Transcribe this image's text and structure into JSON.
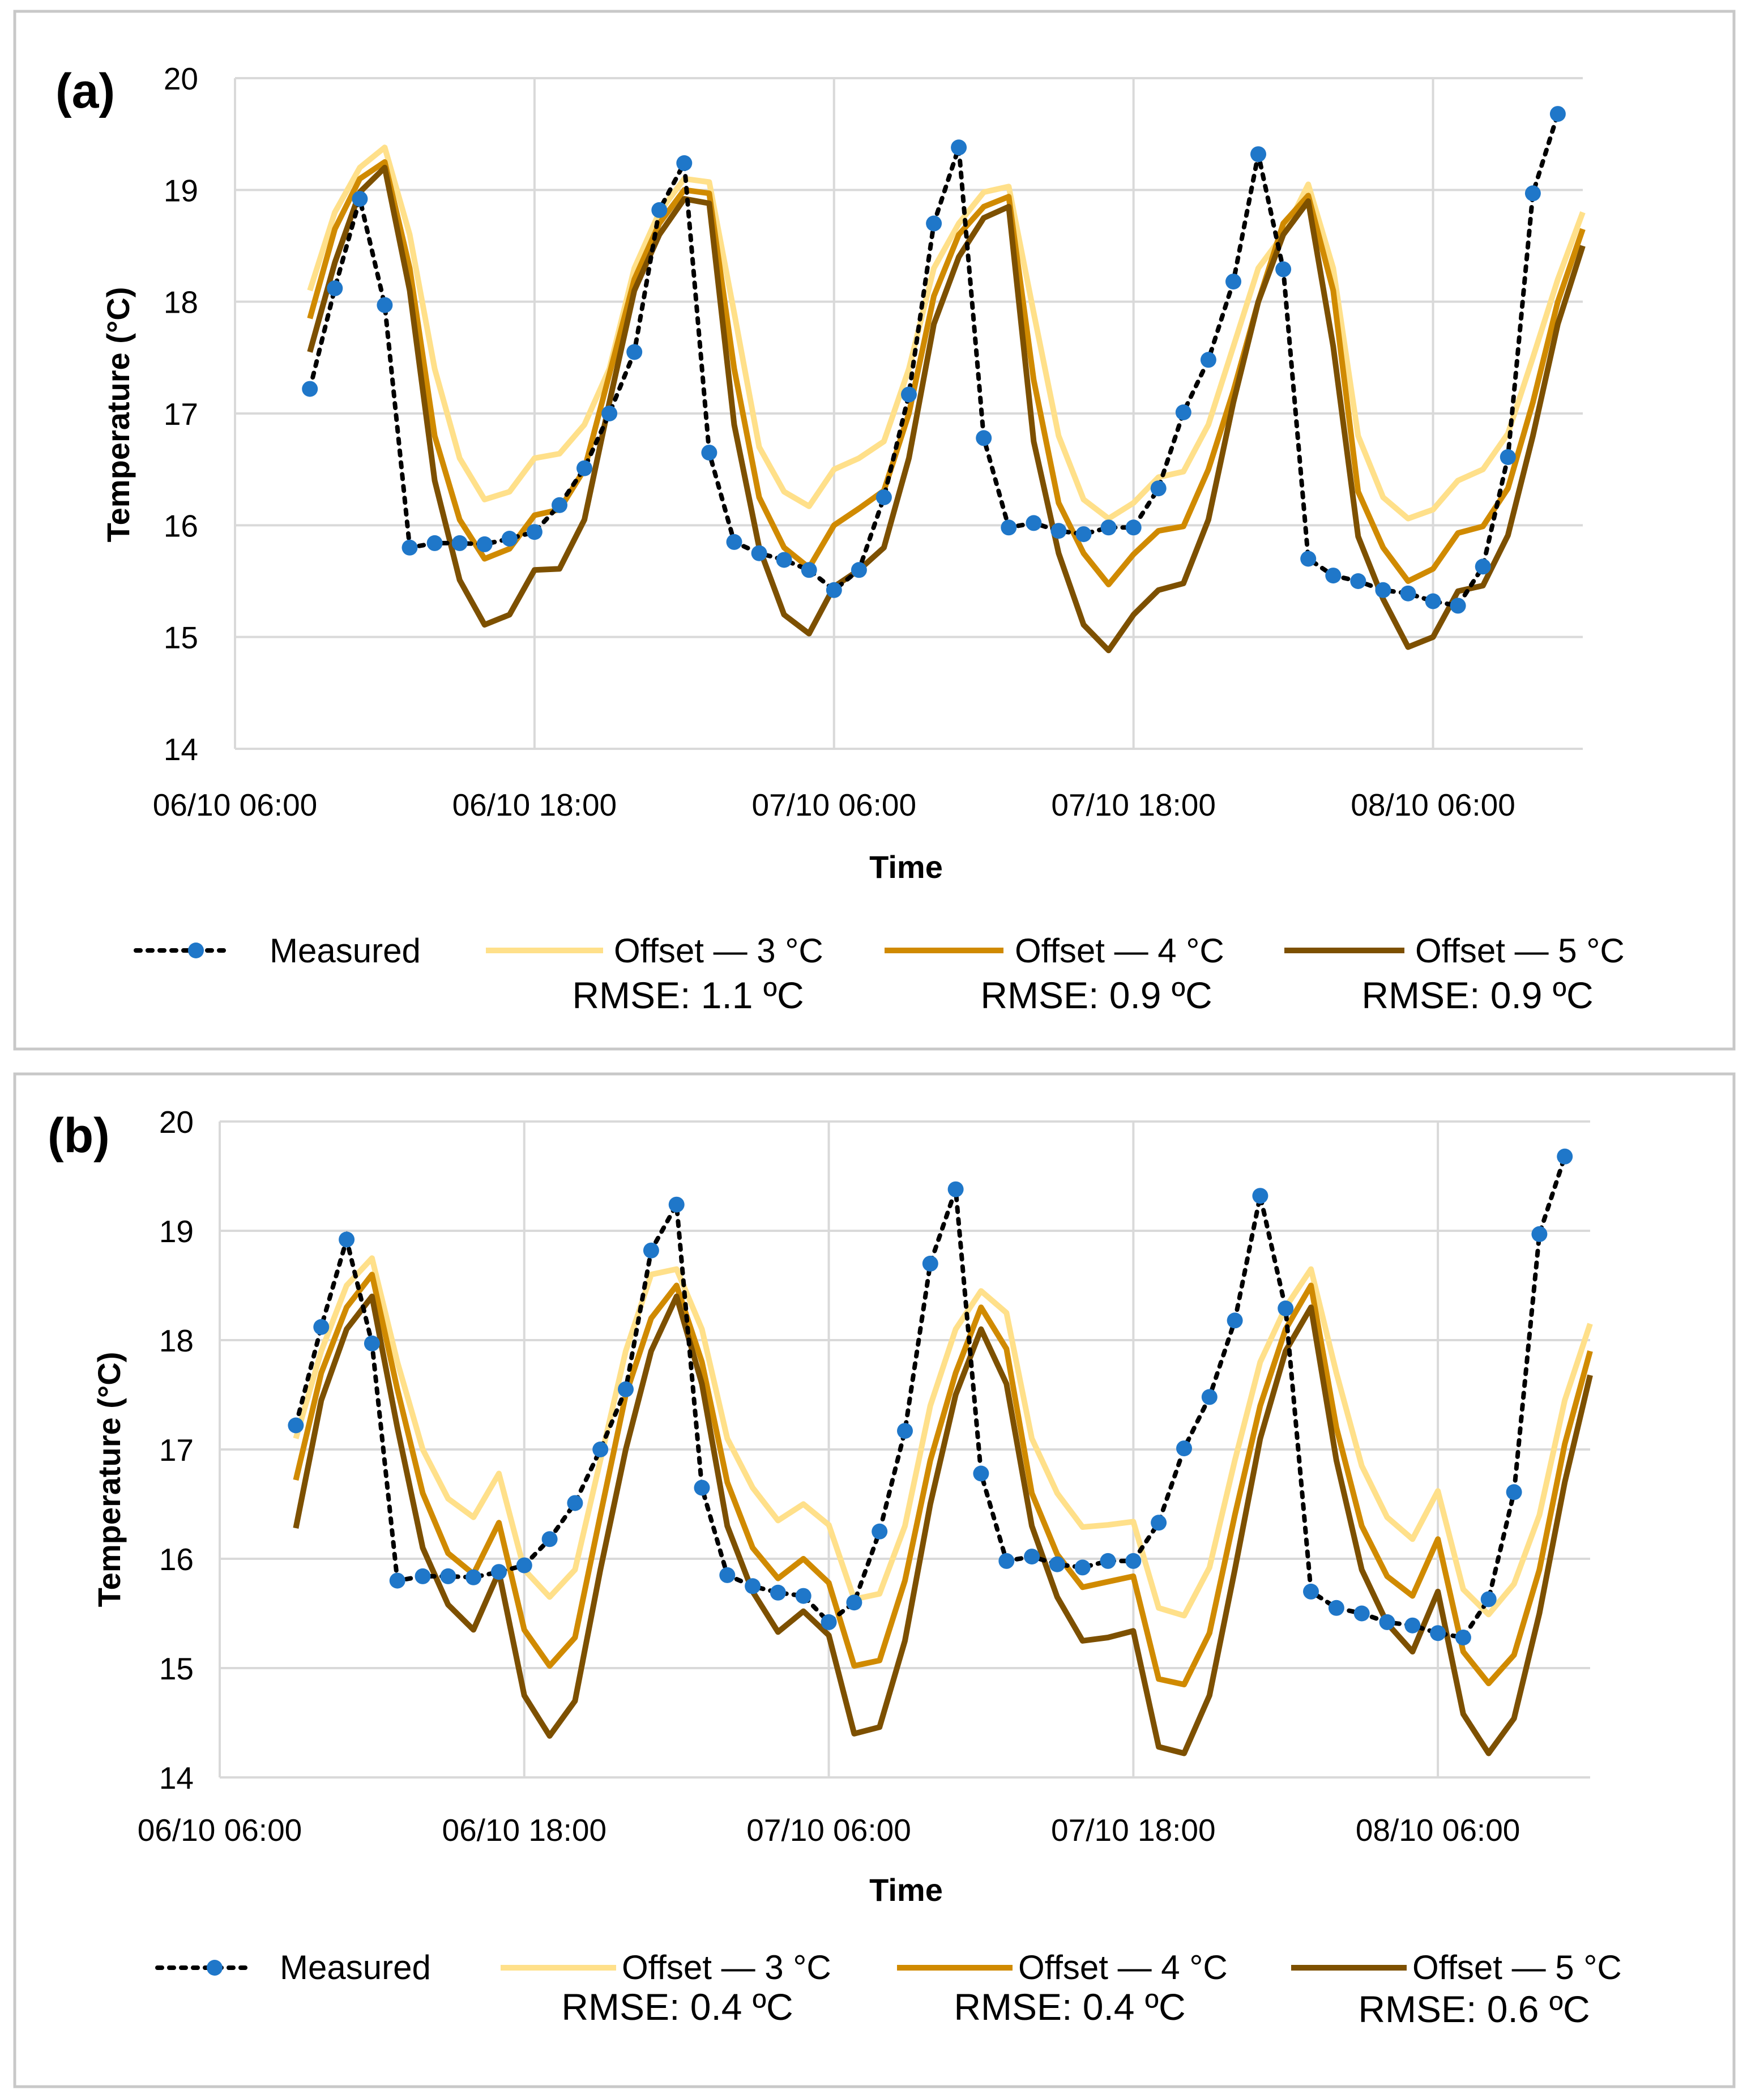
{
  "colors": {
    "measured_marker": "#1f77c9",
    "measured_line": "#000000",
    "offset3": "#ffe08a",
    "offset4": "#d08a00",
    "offset5": "#7d5000",
    "grid": "#d9d9d9",
    "frame": "#c8c8c8"
  },
  "chart_data": [
    {
      "panel": "(a)",
      "type": "line",
      "xlabel": "Time",
      "ylabel": "Temperature (°C)",
      "ylim": [
        14,
        20
      ],
      "yticks": [
        "14",
        "15",
        "16",
        "17",
        "18",
        "19",
        "20"
      ],
      "xtick_labels": [
        "06/10 06:00",
        "06/10 18:00",
        "07/10 06:00",
        "07/10 18:00",
        "08/10 06:00"
      ],
      "x_unit": "hours since 06/10 06:00",
      "x_range": [
        0,
        54
      ],
      "legend": [
        "Measured",
        "Offset — 3 °C",
        "Offset — 4 °C",
        "Offset — 5 °C"
      ],
      "rmse": [
        "RMSE: 1.1 ºC",
        "RMSE: 0.9 ºC",
        "RMSE: 0.9 ºC"
      ],
      "series": [
        {
          "name": "Measured",
          "style": "dotted-markers",
          "x_start": 3,
          "values": [
            17.22,
            18.12,
            18.92,
            17.97,
            15.8,
            15.84,
            15.84,
            15.83,
            15.88,
            15.94,
            16.18,
            16.51,
            17.0,
            17.55,
            18.82,
            19.24,
            16.65,
            15.85,
            15.75,
            15.69,
            15.6,
            15.42,
            15.6,
            16.25,
            17.17,
            18.7,
            19.38,
            16.78,
            15.98,
            16.02,
            15.95,
            15.92,
            15.98,
            15.98,
            16.33,
            17.01,
            17.48,
            18.18,
            19.32,
            18.29,
            15.7,
            15.55,
            15.5,
            15.42,
            15.39,
            15.32,
            15.28,
            15.63,
            16.61,
            18.97,
            19.68
          ]
        },
        {
          "name": "Offset — 3 °C",
          "style": "line",
          "x_start": 3,
          "values": [
            18.1,
            18.8,
            19.2,
            19.38,
            18.6,
            17.4,
            16.6,
            16.23,
            16.3,
            16.6,
            16.64,
            16.9,
            17.4,
            18.3,
            18.8,
            19.1,
            19.07,
            17.9,
            16.7,
            16.3,
            16.17,
            16.5,
            16.6,
            16.75,
            17.4,
            18.3,
            18.7,
            18.98,
            19.03,
            17.9,
            16.8,
            16.23,
            16.06,
            16.2,
            16.43,
            16.48,
            16.9,
            17.6,
            18.3,
            18.6,
            19.05,
            18.3,
            16.8,
            16.25,
            16.06,
            16.14,
            16.4,
            16.5,
            16.82,
            17.5,
            18.2,
            18.8
          ]
        },
        {
          "name": "Offset — 4 °C",
          "style": "line",
          "x_start": 3,
          "values": [
            17.85,
            18.65,
            19.1,
            19.25,
            18.3,
            16.8,
            16.05,
            15.7,
            15.79,
            16.09,
            16.14,
            16.5,
            17.35,
            18.2,
            18.7,
            19.0,
            18.97,
            17.4,
            16.25,
            15.8,
            15.62,
            16.0,
            16.15,
            16.31,
            17.0,
            18.05,
            18.6,
            18.85,
            18.94,
            17.3,
            16.2,
            15.75,
            15.47,
            15.74,
            15.95,
            15.99,
            16.5,
            17.2,
            18.0,
            18.7,
            18.95,
            18.1,
            16.3,
            15.8,
            15.5,
            15.61,
            15.93,
            15.99,
            16.33,
            17.1,
            18.0,
            18.65
          ]
        },
        {
          "name": "Offset — 5 °C",
          "style": "line",
          "x_start": 3,
          "values": [
            17.55,
            18.35,
            18.98,
            19.2,
            18.1,
            16.4,
            15.51,
            15.11,
            15.2,
            15.6,
            15.61,
            16.05,
            17.1,
            18.1,
            18.6,
            18.92,
            18.88,
            16.9,
            15.8,
            15.2,
            15.03,
            15.45,
            15.6,
            15.8,
            16.6,
            17.8,
            18.4,
            18.75,
            18.85,
            16.75,
            15.75,
            15.11,
            14.88,
            15.2,
            15.42,
            15.48,
            16.05,
            17.1,
            18.0,
            18.6,
            18.9,
            17.6,
            15.9,
            15.34,
            14.91,
            15.0,
            15.41,
            15.46,
            15.91,
            16.8,
            17.8,
            18.5
          ]
        }
      ]
    },
    {
      "panel": "(b)",
      "type": "line",
      "xlabel": "Time",
      "ylabel": "Temperature (°C)",
      "ylim": [
        14,
        20
      ],
      "yticks": [
        "14",
        "15",
        "16",
        "17",
        "18",
        "19",
        "20"
      ],
      "xtick_labels": [
        "06/10 06:00",
        "06/10 18:00",
        "07/10 06:00",
        "07/10 18:00",
        "08/10 06:00"
      ],
      "x_unit": "hours since 06/10 06:00",
      "x_range": [
        0,
        54
      ],
      "legend": [
        "Measured",
        "Offset — 3 °C",
        "Offset — 4 °C",
        "Offset — 5 °C"
      ],
      "rmse": [
        "RMSE: 0.4 ºC",
        "RMSE: 0.4 ºC",
        "RMSE: 0.6 ºC"
      ],
      "series": [
        {
          "name": "Measured",
          "style": "dotted-markers",
          "x_start": 3,
          "values": [
            17.22,
            18.12,
            18.92,
            17.97,
            15.8,
            15.84,
            15.84,
            15.83,
            15.88,
            15.94,
            16.18,
            16.51,
            17.0,
            17.55,
            18.82,
            19.24,
            16.65,
            15.85,
            15.75,
            15.69,
            15.66,
            15.42,
            15.6,
            16.25,
            17.17,
            18.7,
            19.38,
            16.78,
            15.98,
            16.02,
            15.95,
            15.92,
            15.98,
            15.98,
            16.33,
            17.01,
            17.48,
            18.18,
            19.32,
            18.29,
            15.7,
            15.55,
            15.5,
            15.42,
            15.39,
            15.32,
            15.28,
            15.63,
            16.61,
            18.97,
            19.68
          ]
        },
        {
          "name": "Offset — 3 °C",
          "style": "line",
          "x_start": 3,
          "values": [
            17.1,
            17.9,
            18.5,
            18.75,
            17.8,
            17.0,
            16.55,
            16.38,
            16.78,
            15.9,
            15.65,
            15.9,
            16.9,
            17.9,
            18.6,
            18.65,
            18.1,
            17.1,
            16.65,
            16.35,
            16.5,
            16.31,
            15.63,
            15.68,
            16.3,
            17.4,
            18.1,
            18.45,
            18.25,
            17.1,
            16.6,
            16.29,
            16.31,
            16.34,
            15.55,
            15.48,
            15.92,
            16.9,
            17.8,
            18.3,
            18.65,
            17.7,
            16.85,
            16.38,
            16.18,
            16.62,
            15.72,
            15.49,
            15.77,
            16.4,
            17.45,
            18.15
          ]
        },
        {
          "name": "Offset — 4 °C",
          "style": "line",
          "x_start": 3,
          "values": [
            16.72,
            17.7,
            18.3,
            18.6,
            17.55,
            16.6,
            16.05,
            15.86,
            16.33,
            15.35,
            15.02,
            15.28,
            16.4,
            17.5,
            18.2,
            18.5,
            17.8,
            16.7,
            16.1,
            15.82,
            16.0,
            15.78,
            15.02,
            15.07,
            15.8,
            16.9,
            17.7,
            18.3,
            17.92,
            16.6,
            16.04,
            15.74,
            15.79,
            15.84,
            14.9,
            14.85,
            15.32,
            16.4,
            17.4,
            18.1,
            18.5,
            17.2,
            16.3,
            15.84,
            15.66,
            16.18,
            15.15,
            14.86,
            15.12,
            15.9,
            17.05,
            17.9
          ]
        },
        {
          "name": "Offset — 5 °C",
          "style": "line",
          "x_start": 3,
          "values": [
            16.28,
            17.45,
            18.1,
            18.4,
            17.2,
            16.1,
            15.58,
            15.35,
            15.88,
            14.75,
            14.38,
            14.7,
            15.9,
            17.0,
            17.9,
            18.4,
            17.6,
            16.3,
            15.7,
            15.33,
            15.52,
            15.3,
            14.4,
            14.46,
            15.25,
            16.5,
            17.5,
            18.1,
            17.6,
            16.3,
            15.65,
            15.25,
            15.28,
            15.34,
            14.28,
            14.22,
            14.75,
            15.9,
            17.1,
            17.9,
            18.3,
            16.9,
            15.9,
            15.41,
            15.15,
            15.7,
            14.58,
            14.22,
            14.54,
            15.5,
            16.7,
            17.68
          ]
        }
      ]
    }
  ]
}
